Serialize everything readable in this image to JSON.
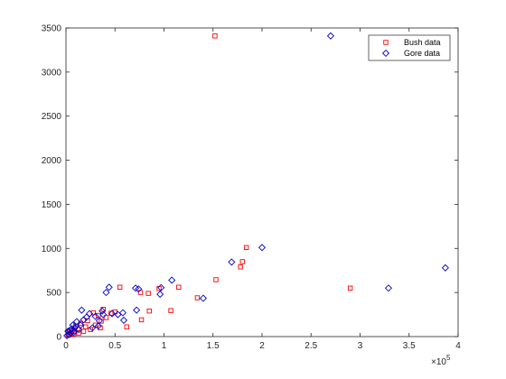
{
  "chart_data": {
    "type": "scatter",
    "title": "",
    "xlabel": "",
    "ylabel": "",
    "x_exponent_label": "×10",
    "x_exponent_power": "5",
    "xlim": [
      0,
      400000
    ],
    "ylim": [
      0,
      3500
    ],
    "x_ticks": [
      0,
      50000,
      100000,
      150000,
      200000,
      250000,
      300000,
      350000,
      400000
    ],
    "x_tick_labels": [
      "0",
      "0.5",
      "1",
      "1.5",
      "2",
      "2.5",
      "3",
      "3.5",
      "4"
    ],
    "y_ticks": [
      0,
      500,
      1000,
      1500,
      2000,
      2500,
      3000,
      3500
    ],
    "y_tick_labels": [
      "0",
      "500",
      "1000",
      "1500",
      "2000",
      "2500",
      "3000",
      "3500"
    ],
    "grid": false,
    "legend_position": "top-right",
    "series": [
      {
        "name": "Bush data",
        "color": "#ff0000",
        "marker": "square",
        "points": [
          [
            152000,
            3410
          ],
          [
            184000,
            1010
          ],
          [
            180000,
            850
          ],
          [
            178000,
            790
          ],
          [
            290000,
            550
          ],
          [
            153000,
            645
          ],
          [
            134000,
            440
          ],
          [
            115000,
            560
          ],
          [
            107000,
            295
          ],
          [
            95000,
            545
          ],
          [
            84000,
            490
          ],
          [
            85000,
            290
          ],
          [
            76000,
            500
          ],
          [
            77000,
            190
          ],
          [
            62000,
            110
          ],
          [
            55000,
            560
          ],
          [
            50000,
            280
          ],
          [
            46000,
            265
          ],
          [
            41000,
            215
          ],
          [
            38000,
            310
          ],
          [
            36000,
            175
          ],
          [
            35000,
            100
          ],
          [
            33000,
            240
          ],
          [
            30000,
            130
          ],
          [
            28000,
            270
          ],
          [
            25000,
            80
          ],
          [
            22000,
            180
          ],
          [
            20000,
            110
          ],
          [
            18000,
            60
          ],
          [
            15000,
            150
          ],
          [
            13000,
            40
          ],
          [
            12000,
            90
          ],
          [
            10000,
            120
          ],
          [
            9000,
            60
          ],
          [
            8000,
            30
          ],
          [
            6000,
            70
          ],
          [
            5000,
            40
          ],
          [
            4000,
            20
          ],
          [
            3000,
            50
          ],
          [
            2000,
            15
          ]
        ]
      },
      {
        "name": "Gore data",
        "color": "#0000cc",
        "marker": "diamond",
        "points": [
          [
            270000,
            3410
          ],
          [
            200000,
            1010
          ],
          [
            169000,
            845
          ],
          [
            387000,
            780
          ],
          [
            329000,
            550
          ],
          [
            108000,
            640
          ],
          [
            140000,
            435
          ],
          [
            97000,
            555
          ],
          [
            96000,
            480
          ],
          [
            74000,
            540
          ],
          [
            71000,
            550
          ],
          [
            72000,
            300
          ],
          [
            59000,
            185
          ],
          [
            58000,
            270
          ],
          [
            53000,
            250
          ],
          [
            47000,
            260
          ],
          [
            44000,
            560
          ],
          [
            41000,
            500
          ],
          [
            38000,
            250
          ],
          [
            37000,
            290
          ],
          [
            34000,
            180
          ],
          [
            33000,
            120
          ],
          [
            30000,
            230
          ],
          [
            27000,
            100
          ],
          [
            24000,
            260
          ],
          [
            21000,
            220
          ],
          [
            18000,
            190
          ],
          [
            16000,
            300
          ],
          [
            15000,
            130
          ],
          [
            13000,
            80
          ],
          [
            11000,
            170
          ],
          [
            9000,
            100
          ],
          [
            8000,
            50
          ],
          [
            7000,
            130
          ],
          [
            6000,
            90
          ],
          [
            5000,
            40
          ],
          [
            4000,
            70
          ],
          [
            3000,
            25
          ],
          [
            2000,
            60
          ],
          [
            1000,
            10
          ]
        ]
      }
    ]
  }
}
